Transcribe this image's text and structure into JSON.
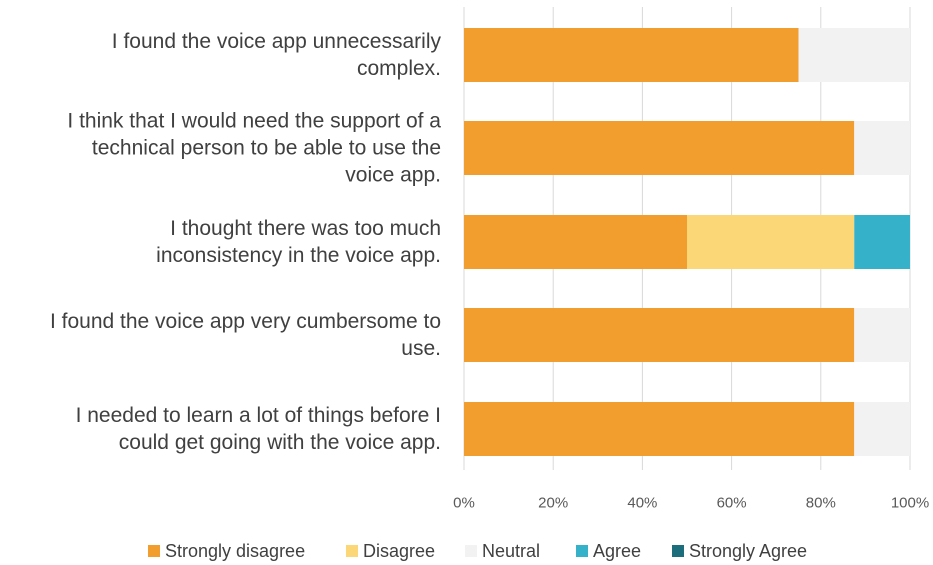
{
  "chart_data": {
    "type": "bar",
    "orientation": "horizontal",
    "stacked": true,
    "categories": [
      "I found the voice app unnecessarily complex.",
      "I think that I would need the support of a technical person to be able to use the voice app.",
      "I thought there was too much inconsistency in the voice app.",
      "I found the voice app very cumbersome to use.",
      "I needed to learn a lot of things before I could get going with the voice app."
    ],
    "category_lines": [
      [
        "I found the voice app unnecessarily",
        "complex."
      ],
      [
        "I think that I would need the support of a",
        "technical person to be able to use the",
        "voice app."
      ],
      [
        "I thought there was too much",
        "inconsistency in the voice app."
      ],
      [
        "I found the voice app very cumbersome to",
        "use."
      ],
      [
        "I needed to learn a lot of things before I",
        "could get going with the voice app."
      ]
    ],
    "series": [
      {
        "name": "Strongly disagree",
        "color": "#f19e2e",
        "values": [
          0.75,
          0.875,
          0.5,
          0.875,
          0.875
        ]
      },
      {
        "name": "Disagree",
        "color": "#fbd778",
        "values": [
          0,
          0,
          0.375,
          0,
          0
        ]
      },
      {
        "name": "Neutral",
        "color": "#f2f2f2",
        "values": [
          0.25,
          0.125,
          0,
          0.125,
          0.125
        ]
      },
      {
        "name": "Agree",
        "color": "#35b1c9",
        "values": [
          0,
          0,
          0.125,
          0,
          0
        ]
      },
      {
        "name": "Strongly Agree",
        "color": "#1c6e7c",
        "values": [
          0,
          0,
          0,
          0,
          0
        ]
      }
    ],
    "x_ticks": [
      "0%",
      "20%",
      "40%",
      "60%",
      "80%",
      "100%"
    ],
    "xlim": [
      0,
      1
    ],
    "grid": true,
    "legend_position": "bottom"
  }
}
